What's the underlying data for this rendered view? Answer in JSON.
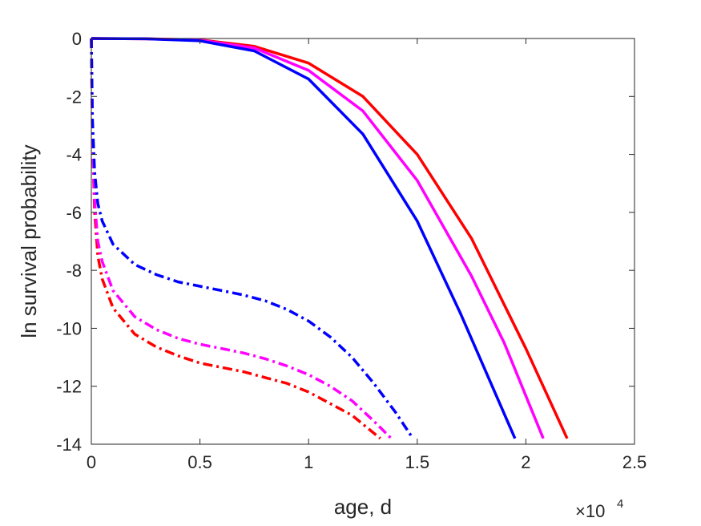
{
  "chart_data": {
    "type": "line",
    "xlabel": "age, d",
    "ylabel": "ln survival probability",
    "x_exponent_base": "×10",
    "x_exponent_power": "4",
    "xlim": [
      0,
      25000
    ],
    "ylim": [
      -14,
      0
    ],
    "xticks": [
      0,
      5000,
      10000,
      15000,
      20000,
      25000
    ],
    "xtick_labels": [
      "0",
      "0.5",
      "1",
      "1.5",
      "2",
      "2.5"
    ],
    "yticks": [
      0,
      -2,
      -4,
      -6,
      -8,
      -10,
      -12,
      -14
    ],
    "ytick_labels": [
      "0",
      "-2",
      "-4",
      "-6",
      "-8",
      "-10",
      "-12",
      "-14"
    ],
    "grid": false,
    "series": [
      {
        "color": "#ff0000",
        "style": "solid",
        "x": [
          0,
          2500,
          5000,
          7500,
          10000,
          12500,
          15000,
          17500,
          20000,
          21900
        ],
        "y": [
          0,
          -0.01,
          -0.05,
          -0.27,
          -0.85,
          -2.0,
          -4.0,
          -6.9,
          -10.7,
          -13.8
        ]
      },
      {
        "color": "#ff00ff",
        "style": "solid",
        "x": [
          0,
          2500,
          5000,
          7500,
          10000,
          12500,
          15000,
          17500,
          19000,
          20800
        ],
        "y": [
          0,
          -0.01,
          -0.06,
          -0.33,
          -1.1,
          -2.5,
          -4.9,
          -8.2,
          -10.5,
          -13.8
        ]
      },
      {
        "color": "#0000ff",
        "style": "solid",
        "x": [
          0,
          2500,
          5000,
          7500,
          10000,
          12500,
          15000,
          17000,
          19500
        ],
        "y": [
          0,
          -0.01,
          -0.08,
          -0.43,
          -1.4,
          -3.3,
          -6.3,
          -9.5,
          -13.8
        ]
      },
      {
        "color": "#ff0000",
        "style": "dashdot",
        "x": [
          0,
          50,
          150,
          300,
          500,
          1000,
          2000,
          3000,
          4000,
          5000,
          6000,
          7000,
          8000,
          9000,
          10000,
          11000,
          12000,
          13300
        ],
        "y": [
          0,
          -3.5,
          -6.0,
          -7.5,
          -8.3,
          -9.3,
          -10.2,
          -10.65,
          -10.95,
          -11.2,
          -11.35,
          -11.5,
          -11.7,
          -11.9,
          -12.2,
          -12.6,
          -13.0,
          -13.8
        ]
      },
      {
        "color": "#ff00ff",
        "style": "dashdot",
        "x": [
          0,
          50,
          150,
          300,
          500,
          1000,
          2000,
          3000,
          4000,
          5000,
          6000,
          7000,
          8000,
          9000,
          10000,
          11000,
          12000,
          13000,
          13800
        ],
        "y": [
          0,
          -3.3,
          -5.6,
          -7.0,
          -7.7,
          -8.7,
          -9.6,
          -10.05,
          -10.35,
          -10.55,
          -10.7,
          -10.85,
          -11.05,
          -11.3,
          -11.6,
          -12.0,
          -12.5,
          -13.2,
          -13.8
        ]
      },
      {
        "color": "#0000ff",
        "style": "dashdot",
        "x": [
          0,
          50,
          150,
          300,
          500,
          1000,
          2000,
          3000,
          4000,
          5000,
          6000,
          7000,
          8000,
          9000,
          10000,
          11000,
          12000,
          13000,
          14000,
          14800
        ],
        "y": [
          0,
          -2.8,
          -4.6,
          -5.7,
          -6.3,
          -7.1,
          -7.8,
          -8.15,
          -8.4,
          -8.55,
          -8.7,
          -8.85,
          -9.05,
          -9.35,
          -9.75,
          -10.3,
          -11.0,
          -11.9,
          -12.9,
          -13.8
        ]
      }
    ]
  }
}
